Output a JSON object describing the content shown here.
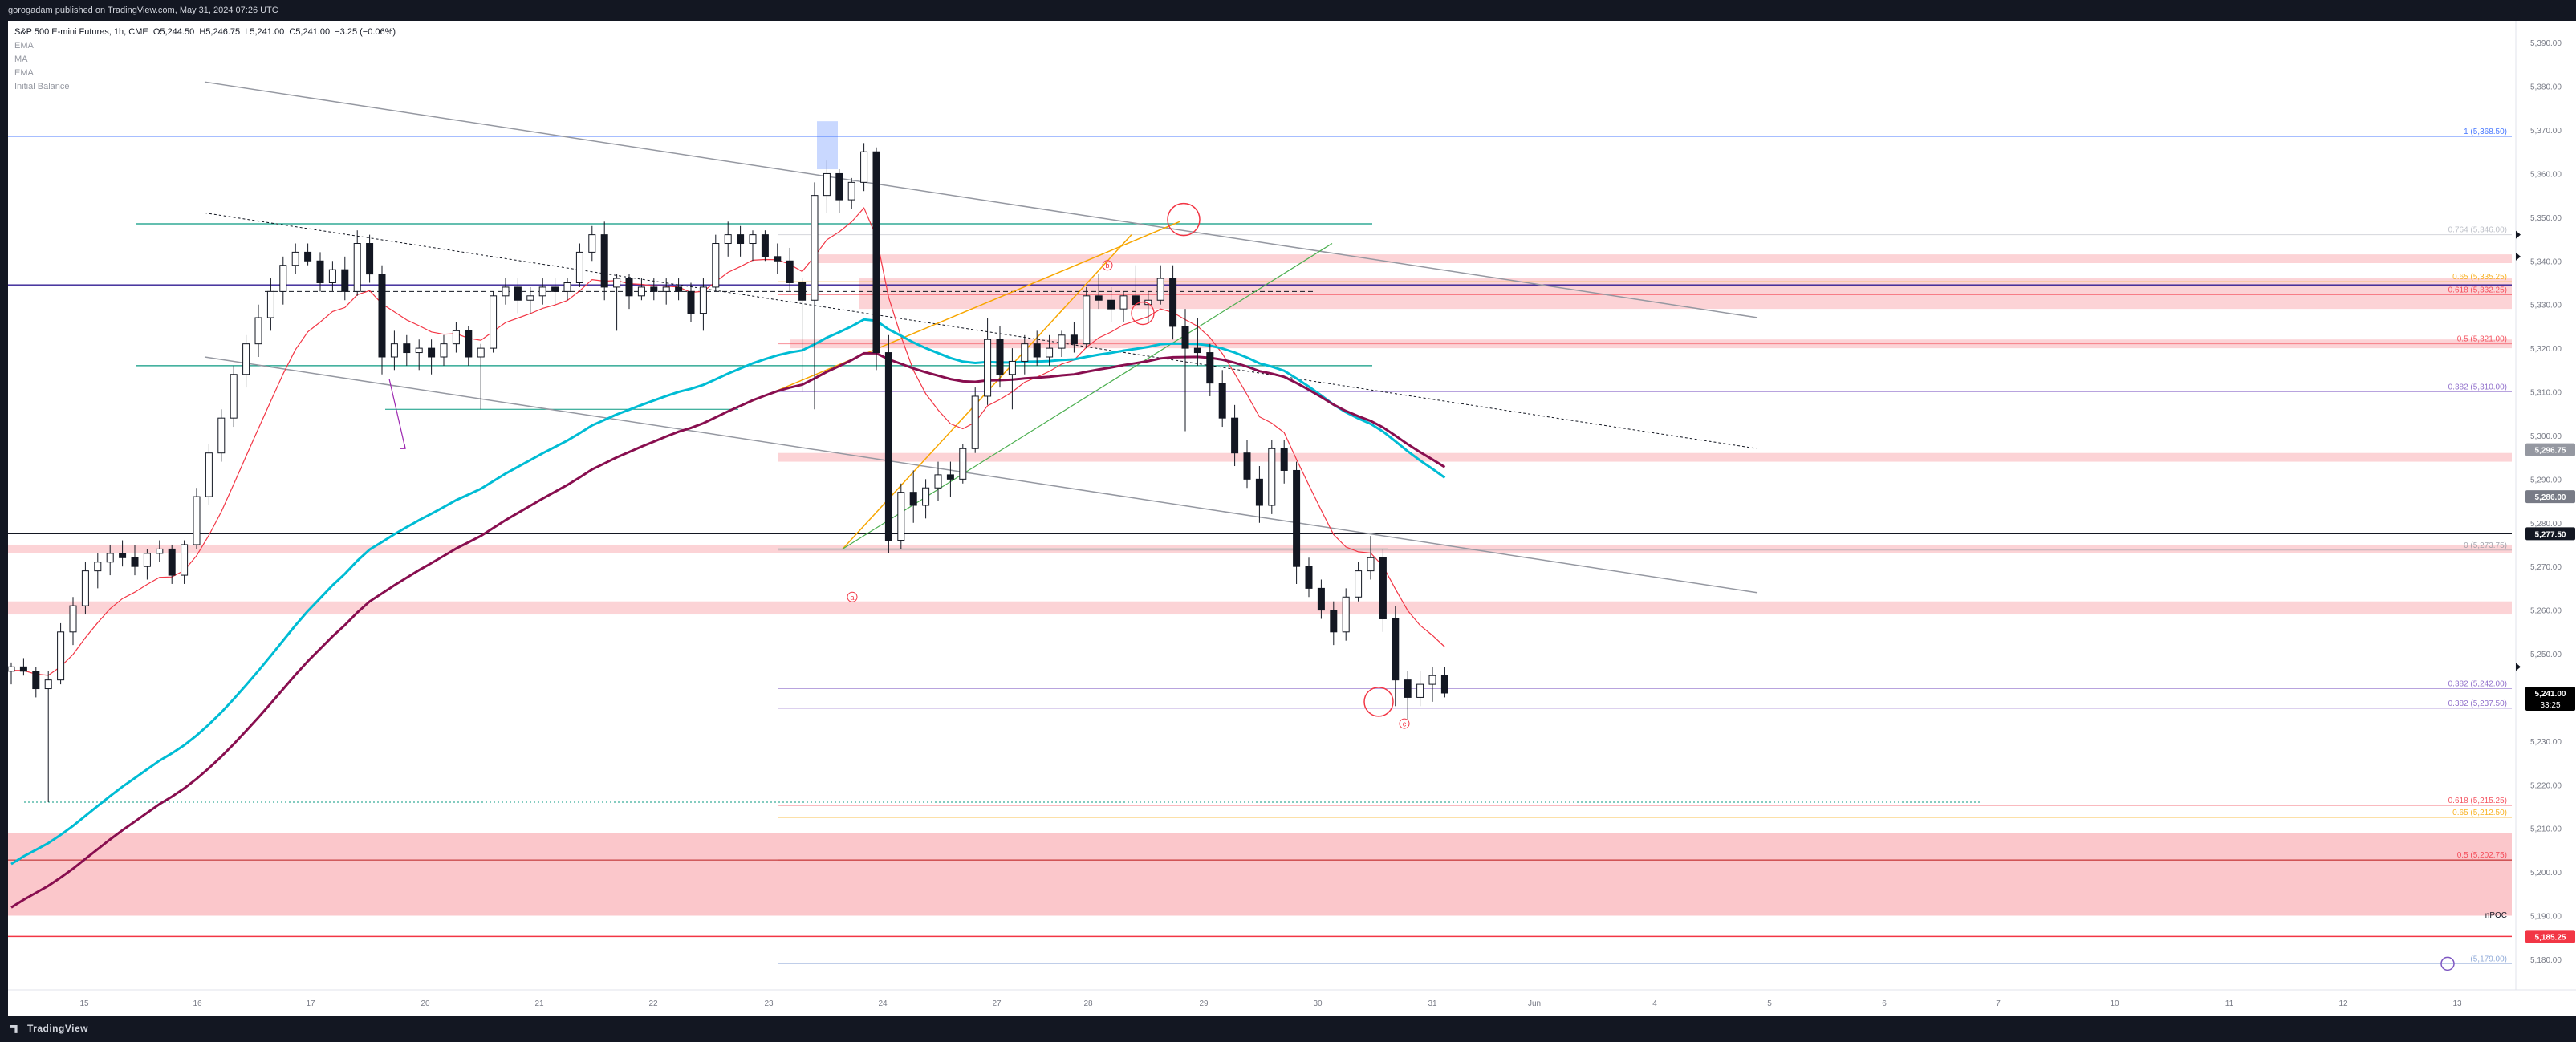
{
  "header": {
    "publish_line": "gorogadam published on TradingView.com, May 31, 2024 07:26 UTC"
  },
  "legend": {
    "symbol_line": "S&P 500 E-mini Futures, 1h, CME",
    "open_label": "O",
    "open": "5,244.50",
    "high_label": "H",
    "high": "5,246.75",
    "low_label": "L",
    "low": "5,241.00",
    "close_label": "C",
    "close": "5,241.00",
    "change": "−3.25 (−0.06%)",
    "indicators": [
      "EMA",
      "MA",
      "EMA",
      "Initial Balance"
    ]
  },
  "footer": {
    "brand": "TradingView"
  },
  "chart_data": {
    "type": "candlestick",
    "title": "S&P 500 E-mini Futures, 1h, CME",
    "y_range": [
      5173,
      5395
    ],
    "y_ticks": [
      "5,390.00",
      "5,380.00",
      "5,370.00",
      "5,360.00",
      "5,350.00",
      "5,340.00",
      "5,330.00",
      "5,320.00",
      "5,310.00",
      "5,300.00",
      "5,290.00",
      "5,280.00",
      "5,270.00",
      "5,260.00",
      "5,250.00",
      "5,240.00",
      "5,230.00",
      "5,220.00",
      "5,210.00",
      "5,200.00",
      "5,190.00",
      "5,180.00"
    ],
    "x_ticks": [
      "15",
      "16",
      "17",
      "20",
      "21",
      "22",
      "23",
      "24",
      "27",
      "28",
      "29",
      "30",
      "31",
      "Jun",
      "4",
      "5",
      "6",
      "7",
      "10",
      "11",
      "12",
      "13"
    ],
    "price_badges": [
      {
        "label": "5,296.75",
        "value": 5296.75,
        "color": "#9598a1"
      },
      {
        "label": "5,286.00",
        "value": 5286.0,
        "color": "#787b86"
      },
      {
        "label": "5,277.50",
        "value": 5277.5,
        "color": "#131722"
      },
      {
        "label": "5,241.00",
        "value": 5241.0,
        "color": "#000000",
        "sub": "33:25"
      },
      {
        "label": "5,185.25",
        "value": 5185.25,
        "color": "#f23645"
      }
    ],
    "fib_levels": [
      {
        "label": "1 (5,368.50)",
        "value": 5368.5
      },
      {
        "label": "0.764 (5,346.00)",
        "value": 5346.0
      },
      {
        "label": "0.65 (5,335.25)",
        "value": 5335.25
      },
      {
        "label": "0.618 (5,332.25)",
        "value": 5332.25
      },
      {
        "label": "0.5 (5,321.00)",
        "value": 5321.0
      },
      {
        "label": "0.382 (5,310.00)",
        "value": 5310.0
      },
      {
        "label": "0 (5,273.75)",
        "value": 5273.75
      },
      {
        "label": "0.382 (5,242.00)",
        "value": 5242.0
      },
      {
        "label": "0.382 (5,237.50)",
        "value": 5237.5
      },
      {
        "label": "0.618 (5,215.25)",
        "value": 5215.25
      },
      {
        "label": "0.65 (5,212.50)",
        "value": 5212.5
      },
      {
        "label": "0.5 (5,202.75)",
        "value": 5202.75
      },
      {
        "label": "(5,179.00)",
        "value": 5179.0
      }
    ],
    "npoc_label": "nPOC",
    "wave_labels": [
      "a",
      "b",
      "c"
    ],
    "candles_key": [
      "o",
      "h",
      "l",
      "c"
    ],
    "candles": [
      [
        5246,
        5248,
        5243,
        5247
      ],
      [
        5247,
        5249,
        5245,
        5246
      ],
      [
        5246,
        5247,
        5240,
        5242
      ],
      [
        5242,
        5246,
        5216,
        5244
      ],
      [
        5244,
        5257,
        5243,
        5255
      ],
      [
        5255,
        5263,
        5252,
        5261
      ],
      [
        5261,
        5271,
        5259,
        5269
      ],
      [
        5269,
        5273,
        5265,
        5271
      ],
      [
        5271,
        5275,
        5268,
        5273
      ],
      [
        5273,
        5276,
        5270,
        5272
      ],
      [
        5272,
        5275,
        5268,
        5270
      ],
      [
        5270,
        5274,
        5267,
        5273
      ],
      [
        5273,
        5276,
        5271,
        5274
      ],
      [
        5274,
        5275,
        5266,
        5268
      ],
      [
        5268,
        5276,
        5266,
        5275
      ],
      [
        5275,
        5288,
        5274,
        5286
      ],
      [
        5286,
        5298,
        5284,
        5296
      ],
      [
        5296,
        5306,
        5294,
        5304
      ],
      [
        5304,
        5316,
        5302,
        5314
      ],
      [
        5314,
        5323,
        5311,
        5321
      ],
      [
        5321,
        5330,
        5318,
        5327
      ],
      [
        5327,
        5336,
        5324,
        5333
      ],
      [
        5333,
        5341,
        5330,
        5339
      ],
      [
        5339,
        5344,
        5337,
        5342
      ],
      [
        5342,
        5344,
        5339,
        5340
      ],
      [
        5340,
        5342,
        5333,
        5335
      ],
      [
        5335,
        5340,
        5333,
        5338
      ],
      [
        5338,
        5341,
        5331,
        5333
      ],
      [
        5333,
        5347,
        5332,
        5344
      ],
      [
        5344,
        5346,
        5335,
        5337
      ],
      [
        5337,
        5339,
        5314,
        5318
      ],
      [
        5318,
        5324,
        5315,
        5321
      ],
      [
        5321,
        5323,
        5316,
        5319
      ],
      [
        5319,
        5322,
        5315,
        5320
      ],
      [
        5320,
        5322,
        5314,
        5318
      ],
      [
        5318,
        5323,
        5316,
        5321
      ],
      [
        5321,
        5326,
        5319,
        5324
      ],
      [
        5324,
        5325,
        5316,
        5318
      ],
      [
        5318,
        5321,
        5306,
        5320
      ],
      [
        5320,
        5333,
        5319,
        5332
      ],
      [
        5332,
        5336,
        5330,
        5334
      ],
      [
        5334,
        5336,
        5328,
        5331
      ],
      [
        5331,
        5334,
        5328,
        5332
      ],
      [
        5332,
        5336,
        5330,
        5334
      ],
      [
        5334,
        5336,
        5330,
        5333
      ],
      [
        5333,
        5336,
        5331,
        5335
      ],
      [
        5335,
        5344,
        5334,
        5342
      ],
      [
        5342,
        5348,
        5340,
        5346
      ],
      [
        5346,
        5349,
        5331,
        5334
      ],
      [
        5334,
        5337,
        5324,
        5336
      ],
      [
        5336,
        5337,
        5329,
        5332
      ],
      [
        5332,
        5336,
        5331,
        5334
      ],
      [
        5334,
        5336,
        5331,
        5333
      ],
      [
        5333,
        5336,
        5330,
        5334
      ],
      [
        5334,
        5336,
        5331,
        5333
      ],
      [
        5333,
        5335,
        5326,
        5328
      ],
      [
        5328,
        5336,
        5324,
        5334
      ],
      [
        5334,
        5346,
        5333,
        5344
      ],
      [
        5344,
        5349,
        5341,
        5346
      ],
      [
        5346,
        5348,
        5341,
        5344
      ],
      [
        5344,
        5347,
        5340,
        5346
      ],
      [
        5346,
        5347,
        5340,
        5341
      ],
      [
        5341,
        5344,
        5337,
        5340
      ],
      [
        5340,
        5343,
        5333,
        5335
      ],
      [
        5335,
        5336,
        5310,
        5331
      ],
      [
        5331,
        5358,
        5306,
        5355
      ],
      [
        5355,
        5363,
        5351,
        5360
      ],
      [
        5360,
        5361,
        5351,
        5354
      ],
      [
        5354,
        5359,
        5352,
        5358
      ],
      [
        5358,
        5367,
        5356,
        5365
      ],
      [
        5365,
        5366,
        5315,
        5319
      ],
      [
        5319,
        5323,
        5273,
        5276
      ],
      [
        5276,
        5289,
        5274,
        5287
      ],
      [
        5287,
        5292,
        5280,
        5284
      ],
      [
        5284,
        5290,
        5281,
        5288
      ],
      [
        5288,
        5294,
        5285,
        5291
      ],
      [
        5291,
        5294,
        5286,
        5290
      ],
      [
        5290,
        5298,
        5289,
        5297
      ],
      [
        5297,
        5311,
        5296,
        5309
      ],
      [
        5309,
        5327,
        5307,
        5322
      ],
      [
        5322,
        5325,
        5311,
        5314
      ],
      [
        5314,
        5320,
        5306,
        5317
      ],
      [
        5317,
        5323,
        5314,
        5321
      ],
      [
        5321,
        5324,
        5316,
        5318
      ],
      [
        5318,
        5323,
        5316,
        5320
      ],
      [
        5320,
        5324,
        5318,
        5323
      ],
      [
        5323,
        5326,
        5319,
        5321
      ],
      [
        5321,
        5334,
        5320,
        5332
      ],
      [
        5332,
        5337,
        5329,
        5331
      ],
      [
        5331,
        5334,
        5326,
        5329
      ],
      [
        5329,
        5333,
        5326,
        5332
      ],
      [
        5332,
        5339,
        5330,
        5330
      ],
      [
        5330,
        5333,
        5326,
        5331
      ],
      [
        5331,
        5339,
        5330,
        5336
      ],
      [
        5336,
        5339,
        5322,
        5325
      ],
      [
        5325,
        5329,
        5301,
        5320
      ],
      [
        5320,
        5327,
        5316,
        5319
      ],
      [
        5319,
        5321,
        5309,
        5312
      ],
      [
        5312,
        5315,
        5302,
        5304
      ],
      [
        5304,
        5307,
        5293,
        5296
      ],
      [
        5296,
        5299,
        5288,
        5290
      ],
      [
        5290,
        5293,
        5280,
        5284
      ],
      [
        5284,
        5299,
        5282,
        5297
      ],
      [
        5297,
        5299,
        5289,
        5292
      ],
      [
        5292,
        5294,
        5266,
        5270
      ],
      [
        5270,
        5272,
        5263,
        5265
      ],
      [
        5265,
        5267,
        5258,
        5260
      ],
      [
        5260,
        5262,
        5252,
        5255
      ],
      [
        5255,
        5265,
        5253,
        5263
      ],
      [
        5263,
        5271,
        5262,
        5269
      ],
      [
        5269,
        5277,
        5267,
        5272
      ],
      [
        5272,
        5274,
        5255,
        5258
      ],
      [
        5258,
        5261,
        5238,
        5244
      ],
      [
        5244,
        5246,
        5235,
        5240
      ],
      [
        5240,
        5246,
        5238,
        5243
      ],
      [
        5243,
        5247,
        5239,
        5245
      ],
      [
        5245,
        5247,
        5240,
        5241
      ]
    ]
  }
}
